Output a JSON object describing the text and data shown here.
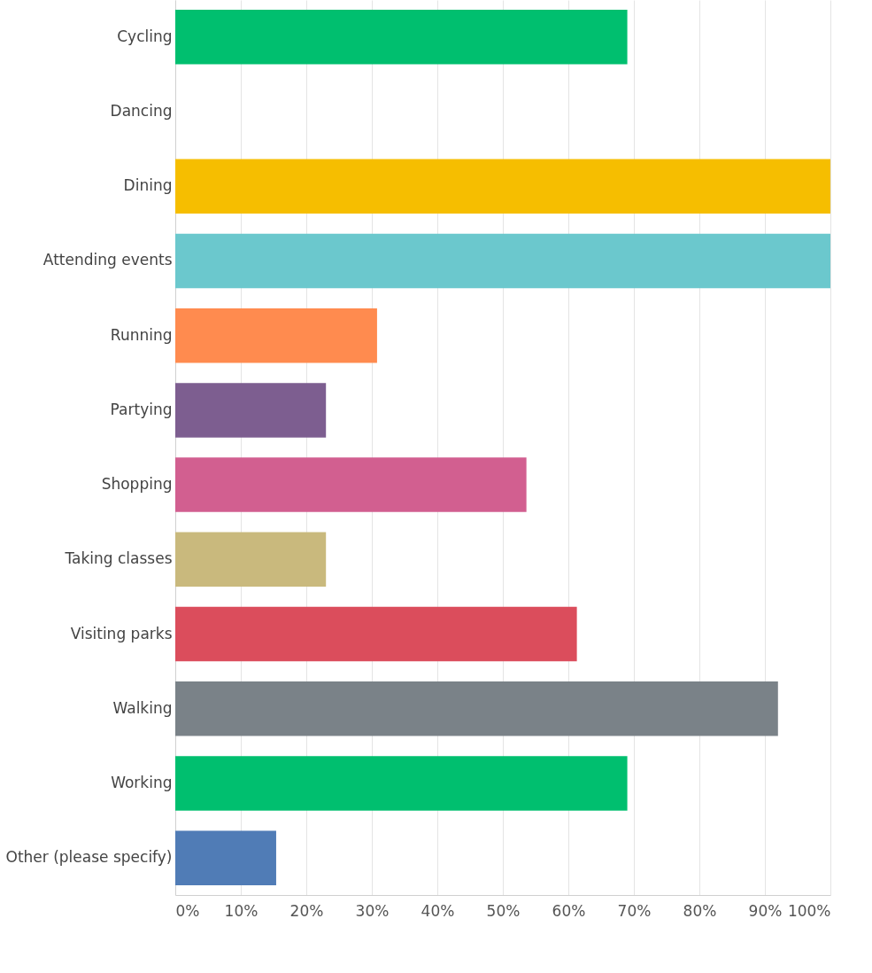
{
  "chart_data": {
    "type": "bar",
    "orientation": "horizontal",
    "categories": [
      "Cycling",
      "Dancing",
      "Dining",
      "Attending events",
      "Running",
      "Partying",
      "Shopping",
      "Taking classes",
      "Visiting parks",
      "Walking",
      "Working",
      "Other (please specify)"
    ],
    "values": [
      69,
      0,
      100,
      100,
      30.8,
      23,
      53.6,
      23,
      61.3,
      92,
      69,
      15.4
    ],
    "colors": [
      "#00bf6f",
      "#507cb6",
      "#f6be00",
      "#6bc8cd",
      "#ff8b4f",
      "#7d5e90",
      "#d25f90",
      "#c9b97d",
      "#db4d5c",
      "#7a8288",
      "#00bf6f",
      "#507cb6"
    ],
    "xlim": [
      0,
      100
    ],
    "xticks": [
      {
        "value": 0,
        "label": "0%"
      },
      {
        "value": 10,
        "label": "10%"
      },
      {
        "value": 20,
        "label": "20%"
      },
      {
        "value": 30,
        "label": "30%"
      },
      {
        "value": 40,
        "label": "40%"
      },
      {
        "value": 50,
        "label": "50%"
      },
      {
        "value": 60,
        "label": "60%"
      },
      {
        "value": 70,
        "label": "70%"
      },
      {
        "value": 80,
        "label": "80%"
      },
      {
        "value": 90,
        "label": "90%"
      },
      {
        "value": 100,
        "label": "100%"
      }
    ],
    "grid": "x"
  }
}
